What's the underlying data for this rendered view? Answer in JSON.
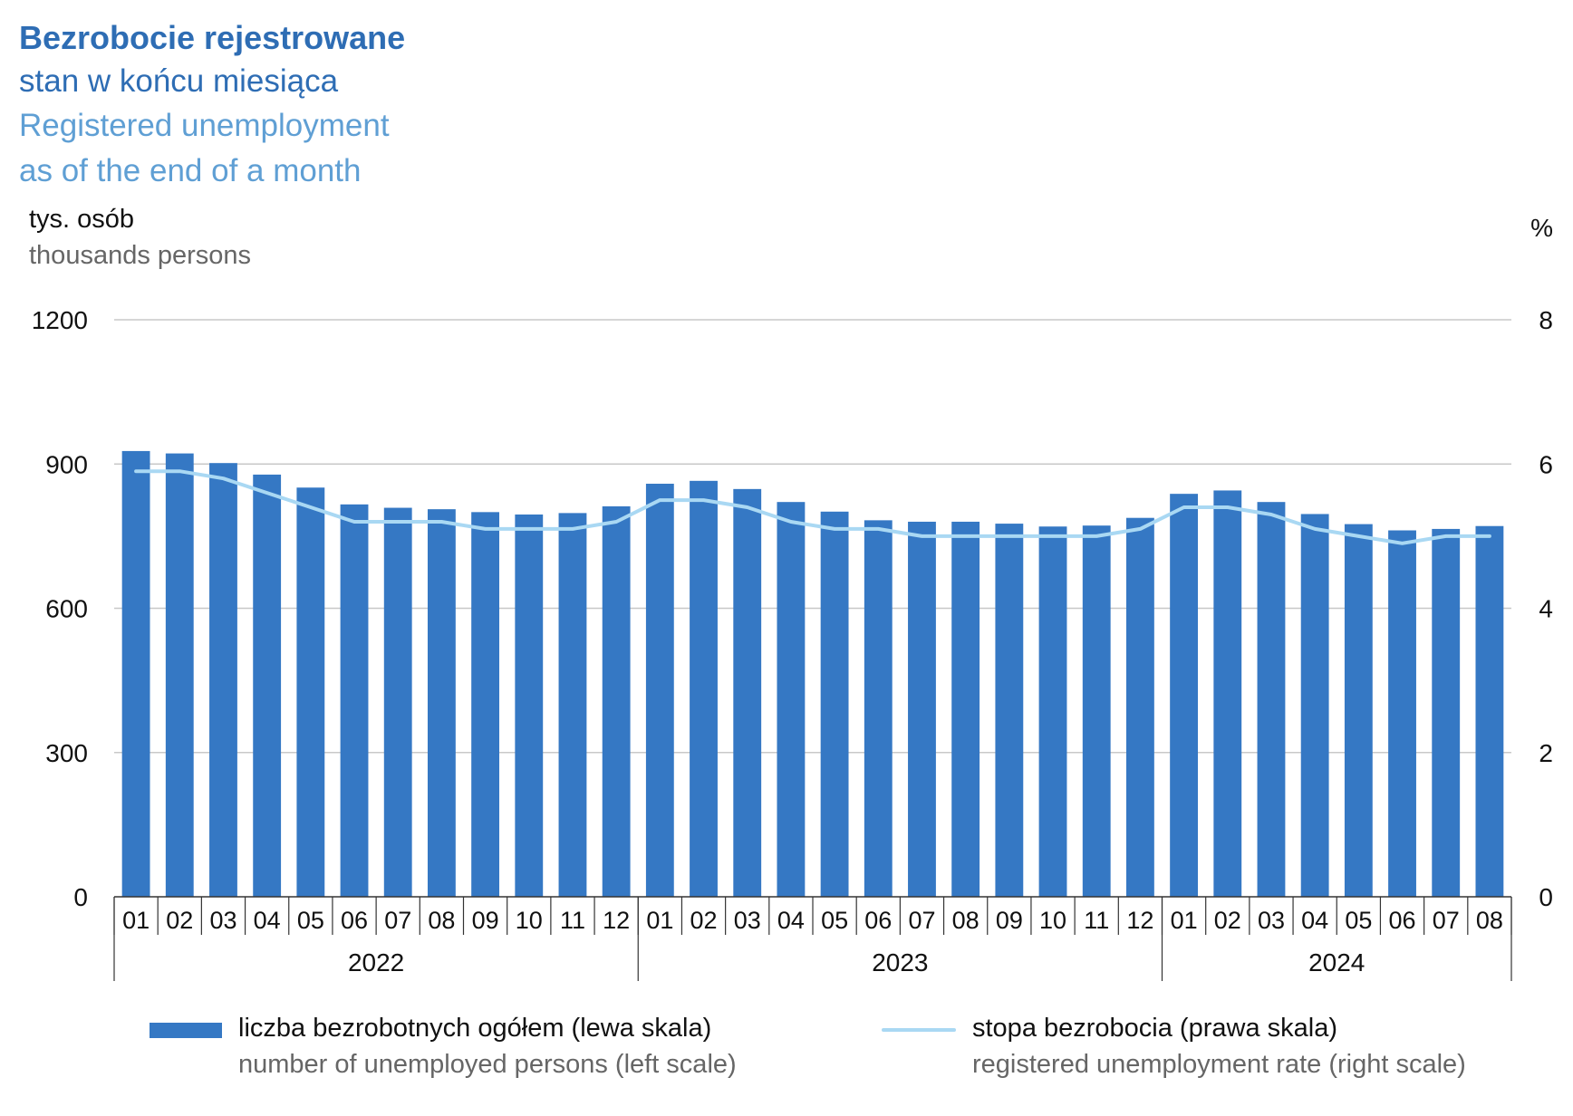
{
  "title": {
    "main": "Bezrobocie rejestrowane",
    "sub": "stan w końcu miesiąca",
    "en_line1": "Registered unemployment",
    "en_line2": "as of the end of a month"
  },
  "units": {
    "left_pl": "tys. osób",
    "left_en": "thousands persons",
    "right": "%"
  },
  "legend": {
    "bars_pl": "liczba bezrobotnych ogółem (lewa skala)",
    "bars_en": "number of unemployed persons (left scale)",
    "line_pl": "stopa bezrobocia (prawa skala)",
    "line_en": "registered unemployment rate (right scale)"
  },
  "colors": {
    "bars": "#3578c4",
    "line": "#a9d8f3",
    "grid": "#c8c8c8",
    "axis": "#333333"
  },
  "chart_data": {
    "type": "bar",
    "categories": [
      "01",
      "02",
      "03",
      "04",
      "05",
      "06",
      "07",
      "08",
      "09",
      "10",
      "11",
      "12",
      "01",
      "02",
      "03",
      "04",
      "05",
      "06",
      "07",
      "08",
      "09",
      "10",
      "11",
      "12",
      "01",
      "02",
      "03",
      "04",
      "05",
      "06",
      "07",
      "08"
    ],
    "years": [
      {
        "label": "2022",
        "months": 12
      },
      {
        "label": "2023",
        "months": 12
      },
      {
        "label": "2024",
        "months": 8
      }
    ],
    "series": [
      {
        "name": "liczba bezrobotnych ogółem (lewa skala)",
        "type": "bar",
        "axis": "left",
        "values": [
          927,
          922,
          902,
          878,
          851,
          816,
          809,
          806,
          800,
          795,
          798,
          812,
          859,
          865,
          848,
          821,
          801,
          783,
          780,
          780,
          776,
          770,
          772,
          788,
          838,
          845,
          821,
          796,
          775,
          762,
          765,
          771
        ]
      },
      {
        "name": "stopa bezrobocia (prawa skala)",
        "type": "line",
        "axis": "right",
        "values": [
          5.9,
          5.9,
          5.8,
          5.6,
          5.4,
          5.2,
          5.2,
          5.2,
          5.1,
          5.1,
          5.1,
          5.2,
          5.5,
          5.5,
          5.4,
          5.2,
          5.1,
          5.1,
          5.0,
          5.0,
          5.0,
          5.0,
          5.0,
          5.1,
          5.4,
          5.4,
          5.3,
          5.1,
          5.0,
          4.9,
          5.0,
          5.0
        ]
      }
    ],
    "y_left": {
      "min": 0,
      "max": 1200,
      "ticks": [
        "0",
        "300",
        "600",
        "900",
        "1200"
      ]
    },
    "y_right": {
      "min": 0,
      "max": 8,
      "ticks": [
        "0",
        "2",
        "4",
        "6",
        "8"
      ]
    },
    "grid": true,
    "legend_position": "bottom"
  }
}
